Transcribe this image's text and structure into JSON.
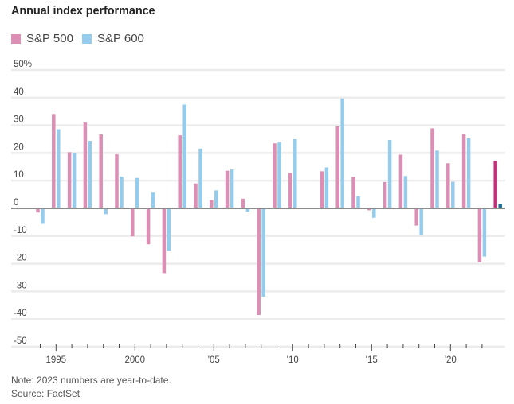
{
  "chart_data": {
    "type": "bar",
    "title": "Annual index performance",
    "xlabel": "",
    "ylabel": "",
    "ylim": [
      -50,
      50
    ],
    "yticks": [
      50,
      40,
      30,
      20,
      10,
      0,
      -10,
      -20,
      -30,
      -40,
      -50
    ],
    "ytick_labels": [
      "50%",
      "40",
      "30",
      "20",
      "10",
      "0",
      "-10",
      "-20",
      "-30",
      "-40",
      "-50"
    ],
    "xticks": [
      1995,
      2000,
      2005,
      2010,
      2015,
      2020
    ],
    "xtick_labels": [
      "1995",
      "2000",
      "'05",
      "'10",
      "'15",
      "'20"
    ],
    "grid": true,
    "legend_position": "top-left",
    "categories": [
      1994,
      1995,
      1996,
      1997,
      1998,
      1999,
      2000,
      2001,
      2002,
      2003,
      2004,
      2005,
      2006,
      2007,
      2008,
      2009,
      2010,
      2011,
      2012,
      2013,
      2014,
      2015,
      2016,
      2017,
      2018,
      2019,
      2020,
      2021,
      2022,
      2023
    ],
    "series": [
      {
        "name": "S&P 500",
        "color": "#db8fb4",
        "highlight_color": "#c2307a",
        "values": [
          -1.5,
          34.1,
          20.3,
          31.0,
          26.7,
          19.5,
          -10.1,
          -13.0,
          -23.4,
          26.4,
          9.0,
          3.0,
          13.6,
          3.5,
          -38.5,
          23.5,
          12.8,
          0.0,
          13.4,
          29.6,
          11.4,
          -0.7,
          9.5,
          19.4,
          -6.2,
          28.9,
          16.3,
          26.9,
          -19.4,
          17.2
        ]
      },
      {
        "name": "S&P 600",
        "color": "#95ccec",
        "highlight_color": "#1f6e9c",
        "values": [
          -5.6,
          28.6,
          20.1,
          24.4,
          -2.1,
          11.5,
          11.0,
          5.7,
          -15.3,
          37.5,
          21.6,
          6.5,
          14.1,
          -1.2,
          -31.9,
          23.8,
          25.0,
          -0.2,
          14.8,
          39.7,
          4.4,
          -3.4,
          24.7,
          11.7,
          -9.8,
          20.9,
          9.6,
          25.3,
          -17.4,
          1.6
        ]
      }
    ],
    "highlighted_category": 2023,
    "note": "Note: 2023 numbers are year-to-date.",
    "source": "Source: FactSet"
  }
}
